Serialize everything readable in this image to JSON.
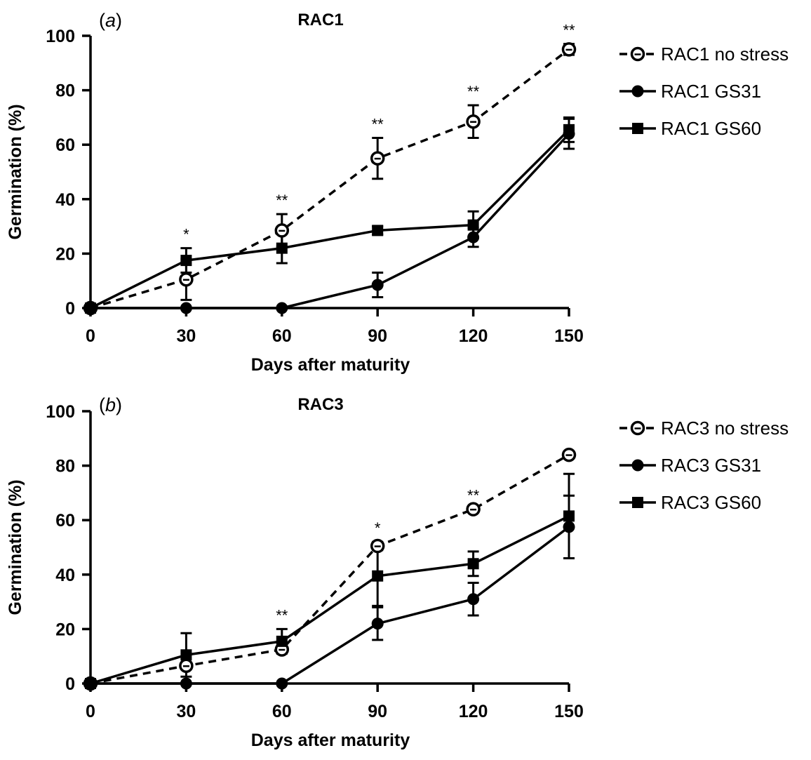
{
  "chart_data": [
    {
      "type": "line",
      "panel_label": "a",
      "title": "RAC1",
      "xlabel": "Days after maturity",
      "ylabel": "Germination (%)",
      "x": [
        0,
        30,
        60,
        90,
        120,
        150
      ],
      "xticks": [
        "0",
        "30",
        "60",
        "90",
        "120",
        "150"
      ],
      "yticks": [
        "0",
        "20",
        "40",
        "60",
        "80",
        "100"
      ],
      "xlim": [
        0,
        150
      ],
      "ylim": [
        0,
        100
      ],
      "series": [
        {
          "name": "RAC1 no stress",
          "marker": "open-circle",
          "dashed": true,
          "values": [
            0,
            10.5,
            28.5,
            55,
            68.5,
            95
          ],
          "err": [
            0,
            7.5,
            6,
            7.5,
            6,
            2
          ]
        },
        {
          "name": "RAC1 GS31",
          "marker": "filled-circle",
          "dashed": false,
          "values": [
            0,
            0,
            0,
            8.5,
            26,
            64
          ],
          "err": [
            0,
            0,
            0,
            4.5,
            3.5,
            5.5
          ]
        },
        {
          "name": "RAC1 GS60",
          "marker": "filled-square",
          "dashed": false,
          "values": [
            0,
            17.5,
            22,
            28.5,
            30.5,
            65.5
          ],
          "err": [
            0,
            4.5,
            5.5,
            1.5,
            5,
            4.5
          ]
        }
      ],
      "significance": [
        {
          "x": 30,
          "label": "*"
        },
        {
          "x": 60,
          "label": "**"
        },
        {
          "x": 90,
          "label": "**"
        },
        {
          "x": 120,
          "label": "**"
        },
        {
          "x": 150,
          "label": "**"
        }
      ]
    },
    {
      "type": "line",
      "panel_label": "b",
      "title": "RAC3",
      "xlabel": "Days after maturity",
      "ylabel": "Germination (%)",
      "x": [
        0,
        30,
        60,
        90,
        120,
        150
      ],
      "xticks": [
        "0",
        "30",
        "60",
        "90",
        "120",
        "150"
      ],
      "yticks": [
        "0",
        "20",
        "40",
        "60",
        "80",
        "100"
      ],
      "xlim": [
        0,
        150
      ],
      "ylim": [
        0,
        100
      ],
      "series": [
        {
          "name": "RAC3 no stress",
          "marker": "open-circle",
          "dashed": true,
          "values": [
            0,
            6.5,
            12.5,
            50.5,
            64,
            84
          ],
          "err": [
            0,
            0,
            0,
            1.5,
            0,
            0
          ]
        },
        {
          "name": "RAC3 GS31",
          "marker": "filled-circle",
          "dashed": false,
          "values": [
            0,
            0,
            0,
            22,
            31,
            57.5
          ],
          "err": [
            0,
            0,
            0,
            6,
            6,
            11.5
          ]
        },
        {
          "name": "RAC3 GS60",
          "marker": "filled-square",
          "dashed": false,
          "values": [
            0,
            10.5,
            15.5,
            39.5,
            44,
            61.5
          ],
          "err": [
            0,
            8,
            4.5,
            11,
            4.5,
            15.5
          ]
        }
      ],
      "significance": [
        {
          "x": 60,
          "label": "**"
        },
        {
          "x": 90,
          "label": "*"
        },
        {
          "x": 120,
          "label": "**"
        }
      ]
    }
  ]
}
